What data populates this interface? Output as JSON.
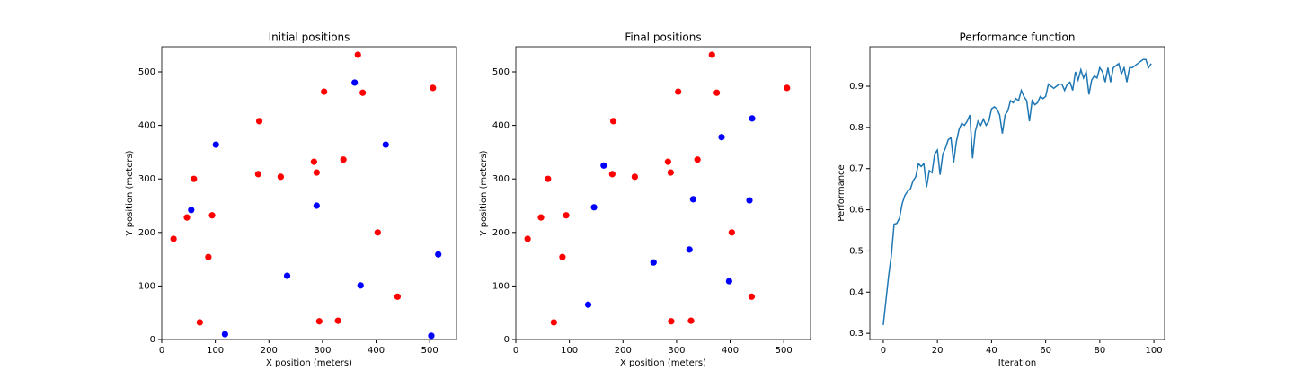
{
  "chart_data": [
    {
      "type": "scatter",
      "title": "Initial positions",
      "xlabel": "X position (meters)",
      "ylabel": "Y position (meters)",
      "xlim": [
        0,
        550
      ],
      "ylim": [
        0,
        547
      ],
      "xticks": [
        0,
        100,
        200,
        300,
        400,
        500
      ],
      "yticks": [
        0,
        100,
        200,
        300,
        400,
        500
      ],
      "series": [
        {
          "color": "#ff0000",
          "x": [
            60,
            47,
            22,
            94,
            87,
            71,
            182,
            180,
            222,
            284,
            289,
            339,
            303,
            366,
            375,
            506,
            403,
            440,
            294,
            329
          ],
          "values": [
            300,
            228,
            188,
            232,
            154,
            32,
            408,
            309,
            304,
            332,
            312,
            336,
            463,
            532,
            461,
            470,
            200,
            80,
            34,
            35
          ]
        },
        {
          "color": "#0000ff",
          "x": [
            101,
            55,
            118,
            234,
            289,
            360,
            418,
            371,
            516,
            503
          ],
          "values": [
            364,
            242,
            10,
            119,
            250,
            480,
            364,
            101,
            159,
            7
          ]
        }
      ]
    },
    {
      "type": "scatter",
      "title": "Final positions",
      "xlabel": "X position (meters)",
      "ylabel": "Y position (meters)",
      "xlim": [
        0,
        550
      ],
      "ylim": [
        0,
        547
      ],
      "xticks": [
        0,
        100,
        200,
        300,
        400,
        500
      ],
      "yticks": [
        0,
        100,
        200,
        300,
        400,
        500
      ],
      "series": [
        {
          "color": "#ff0000",
          "x": [
            60,
            47,
            22,
            94,
            87,
            71,
            182,
            180,
            222,
            284,
            289,
            339,
            303,
            366,
            375,
            506,
            403,
            440,
            290,
            327
          ],
          "values": [
            300,
            228,
            188,
            232,
            154,
            32,
            408,
            309,
            304,
            332,
            312,
            336,
            463,
            532,
            461,
            470,
            200,
            80,
            34,
            35
          ]
        },
        {
          "color": "#0000ff",
          "x": [
            164,
            146,
            135,
            257,
            324,
            331,
            384,
            441,
            436,
            398
          ],
          "values": [
            325,
            247,
            65,
            144,
            168,
            262,
            378,
            413,
            260,
            109
          ]
        }
      ]
    },
    {
      "type": "line",
      "title": "Performance function",
      "xlabel": "Iteration",
      "ylabel": "Performance",
      "xlim": [
        -4.95,
        103.95
      ],
      "ylim": [
        0.285,
        0.996
      ],
      "xticks": [
        0,
        20,
        40,
        60,
        80,
        100
      ],
      "yticks": [
        0.3,
        0.4,
        0.5,
        0.6,
        0.7,
        0.8,
        0.9
      ],
      "series": [
        {
          "color": "#1f77b4",
          "x": [
            0,
            1,
            2,
            3,
            4,
            5,
            6,
            7,
            8,
            9,
            10,
            11,
            12,
            13,
            14,
            15,
            16,
            17,
            18,
            19,
            20,
            21,
            22,
            23,
            24,
            25,
            26,
            27,
            28,
            29,
            30,
            31,
            32,
            33,
            34,
            35,
            36,
            37,
            38,
            39,
            40,
            41,
            42,
            43,
            44,
            45,
            46,
            47,
            48,
            49,
            50,
            51,
            52,
            53,
            54,
            55,
            56,
            57,
            58,
            59,
            60,
            61,
            62,
            63,
            64,
            65,
            66,
            67,
            68,
            69,
            70,
            71,
            72,
            73,
            74,
            75,
            76,
            77,
            78,
            79,
            80,
            81,
            82,
            83,
            84,
            85,
            86,
            87,
            88,
            89,
            90,
            91,
            92,
            93,
            94,
            95,
            96,
            97,
            98,
            99
          ],
          "values": [
            0.32,
            0.38,
            0.44,
            0.49,
            0.565,
            0.567,
            0.58,
            0.615,
            0.635,
            0.645,
            0.65,
            0.67,
            0.68,
            0.712,
            0.705,
            0.712,
            0.655,
            0.695,
            0.69,
            0.735,
            0.745,
            0.685,
            0.735,
            0.75,
            0.77,
            0.775,
            0.715,
            0.765,
            0.795,
            0.81,
            0.805,
            0.815,
            0.83,
            0.725,
            0.79,
            0.815,
            0.805,
            0.82,
            0.805,
            0.815,
            0.845,
            0.85,
            0.845,
            0.83,
            0.785,
            0.83,
            0.84,
            0.865,
            0.86,
            0.87,
            0.865,
            0.89,
            0.875,
            0.865,
            0.815,
            0.865,
            0.855,
            0.86,
            0.875,
            0.87,
            0.875,
            0.905,
            0.9,
            0.895,
            0.9,
            0.905,
            0.905,
            0.89,
            0.905,
            0.91,
            0.89,
            0.935,
            0.915,
            0.94,
            0.92,
            0.935,
            0.88,
            0.915,
            0.925,
            0.92,
            0.945,
            0.935,
            0.91,
            0.945,
            0.91,
            0.945,
            0.95,
            0.955,
            0.93,
            0.945,
            0.91,
            0.945,
            0.945,
            0.95,
            0.955,
            0.96,
            0.965,
            0.965,
            0.945,
            0.955
          ]
        }
      ]
    }
  ]
}
